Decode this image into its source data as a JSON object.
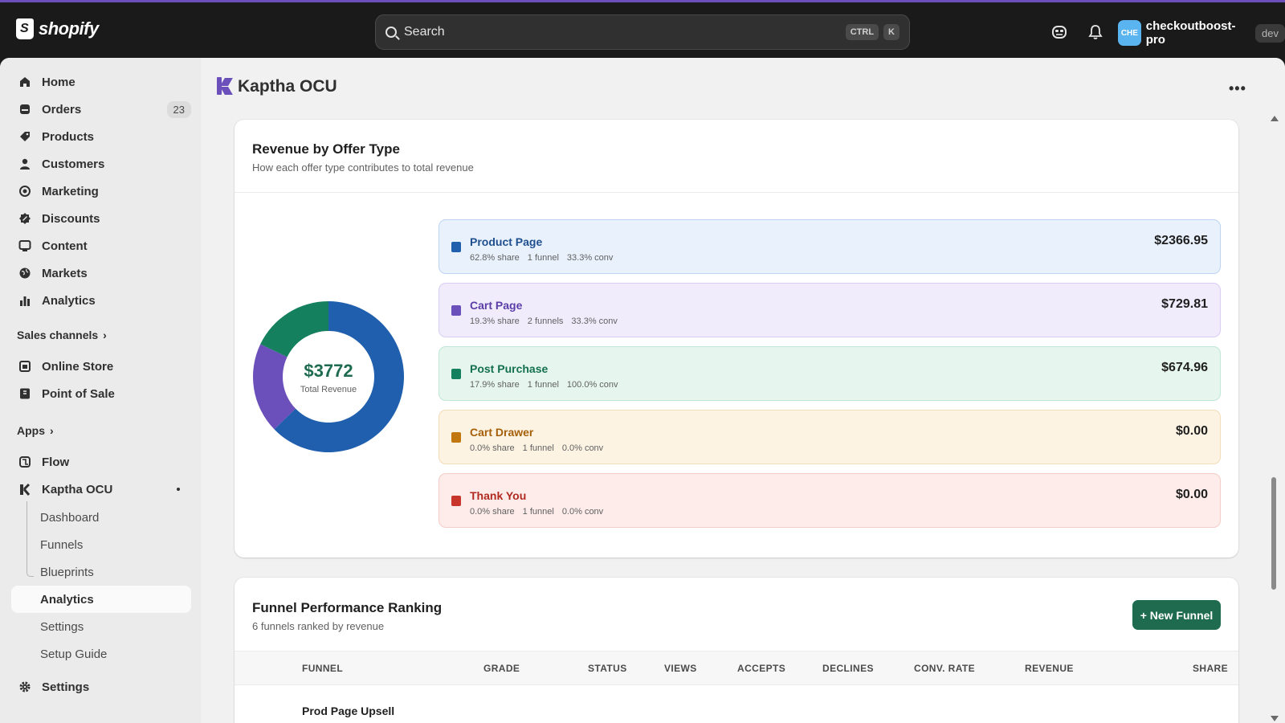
{
  "topbar": {
    "logo_text": "shopify",
    "search_placeholder": "Search",
    "shortcut_keys": [
      "CTRL",
      "K"
    ],
    "store": {
      "avatar": "CHE",
      "name": "checkoutboost-pro",
      "badge": "dev"
    }
  },
  "sidebar": {
    "items": [
      {
        "label": "Home",
        "icon": "home-icon"
      },
      {
        "label": "Orders",
        "icon": "orders-icon",
        "count": "23"
      },
      {
        "label": "Products",
        "icon": "tag-icon"
      },
      {
        "label": "Customers",
        "icon": "person-icon"
      },
      {
        "label": "Marketing",
        "icon": "target-icon"
      },
      {
        "label": "Discounts",
        "icon": "discount-icon"
      },
      {
        "label": "Content",
        "icon": "content-icon"
      },
      {
        "label": "Markets",
        "icon": "globe-icon"
      },
      {
        "label": "Analytics",
        "icon": "bar-chart-icon"
      }
    ],
    "sales_channels_label": "Sales channels",
    "sales_channels": [
      {
        "label": "Online Store",
        "icon": "store-icon"
      },
      {
        "label": "Point of Sale",
        "icon": "pos-icon"
      }
    ],
    "apps_label": "Apps",
    "apps": [
      {
        "label": "Flow",
        "icon": "flow-icon"
      },
      {
        "label": "Kaptha OCU",
        "icon": "kaptha-icon"
      }
    ],
    "app_subitems": [
      "Dashboard",
      "Funnels",
      "Blueprints",
      "Analytics",
      "Settings",
      "Setup Guide"
    ],
    "active_subitem": "Analytics",
    "settings_label": "Settings"
  },
  "page": {
    "title": "Kaptha OCU"
  },
  "revenue_card": {
    "title": "Revenue by Offer Type",
    "subtitle": "How each offer type contributes to total revenue",
    "total_value": "$3772",
    "total_caption": "Total Revenue",
    "offers": [
      {
        "name": "Product Page",
        "share": "62.8% share",
        "funnels": "1 funnel",
        "conv": "33.3% conv",
        "revenue": "$2366.95",
        "color": "#1f5fad",
        "bg": "#e8f1fc",
        "border": "#bcd4f0",
        "text_color": "#1f4f8f"
      },
      {
        "name": "Cart Page",
        "share": "19.3% share",
        "funnels": "2 funnels",
        "conv": "33.3% conv",
        "revenue": "$729.81",
        "color": "#6b4fbb",
        "bg": "#f1ecfc",
        "border": "#d9cdf3",
        "text_color": "#5a3da8"
      },
      {
        "name": "Post Purchase",
        "share": "17.9% share",
        "funnels": "1 funnel",
        "conv": "100.0% conv",
        "revenue": "$674.96",
        "color": "#15805e",
        "bg": "#e6f6ef",
        "border": "#c0e6d5",
        "text_color": "#14704f"
      },
      {
        "name": "Cart Drawer",
        "share": "0.0% share",
        "funnels": "1 funnel",
        "conv": "0.0% conv",
        "revenue": "$0.00",
        "color": "#c2770e",
        "bg": "#fdf3e3",
        "border": "#f3dcb8",
        "text_color": "#a55f08"
      },
      {
        "name": "Thank You",
        "share": "0.0% share",
        "funnels": "1 funnel",
        "conv": "0.0% conv",
        "revenue": "$0.00",
        "color": "#c8352b",
        "bg": "#fdecea",
        "border": "#f4cdc8",
        "text_color": "#b02a20"
      }
    ]
  },
  "chart_data": {
    "type": "pie",
    "categories": [
      "Product Page",
      "Cart Page",
      "Post Purchase",
      "Cart Drawer",
      "Thank You"
    ],
    "values": [
      2366.95,
      729.81,
      674.96,
      0,
      0
    ],
    "colors": [
      "#1f5fad",
      "#6b4fbb",
      "#15805e",
      "#c2770e",
      "#c8352b"
    ],
    "title": "Revenue by Offer Type",
    "center_label": "$3772",
    "donut": true
  },
  "ranking_card": {
    "title": "Funnel Performance Ranking",
    "subtitle": "6 funnels ranked by revenue",
    "new_button": "+ New Funnel",
    "columns": [
      "FUNNEL",
      "GRADE",
      "STATUS",
      "VIEWS",
      "ACCEPTS",
      "DECLINES",
      "CONV. RATE",
      "REVENUE",
      "SHARE"
    ],
    "first_row_name": "Prod Page Upsell"
  }
}
